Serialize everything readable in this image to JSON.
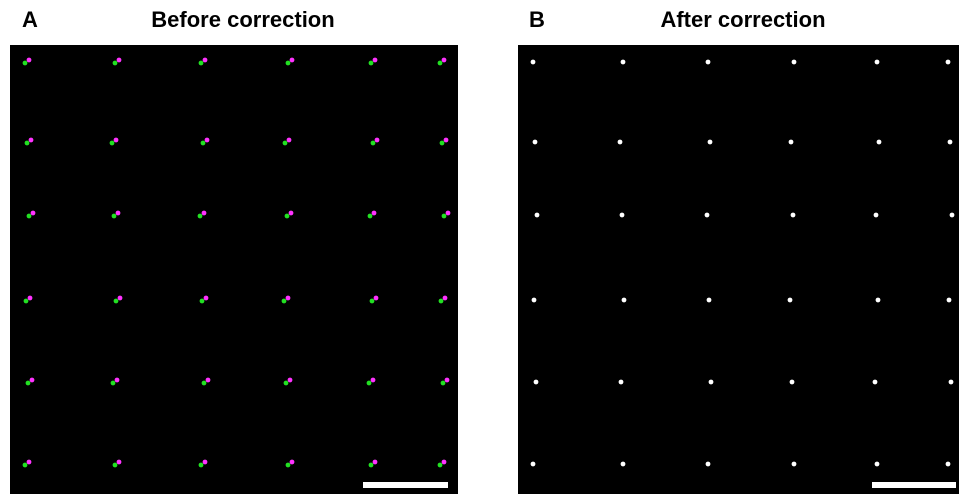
{
  "panels": [
    {
      "label": "A",
      "title": "Before correction"
    },
    {
      "label": "B",
      "title": "After correction"
    }
  ]
}
